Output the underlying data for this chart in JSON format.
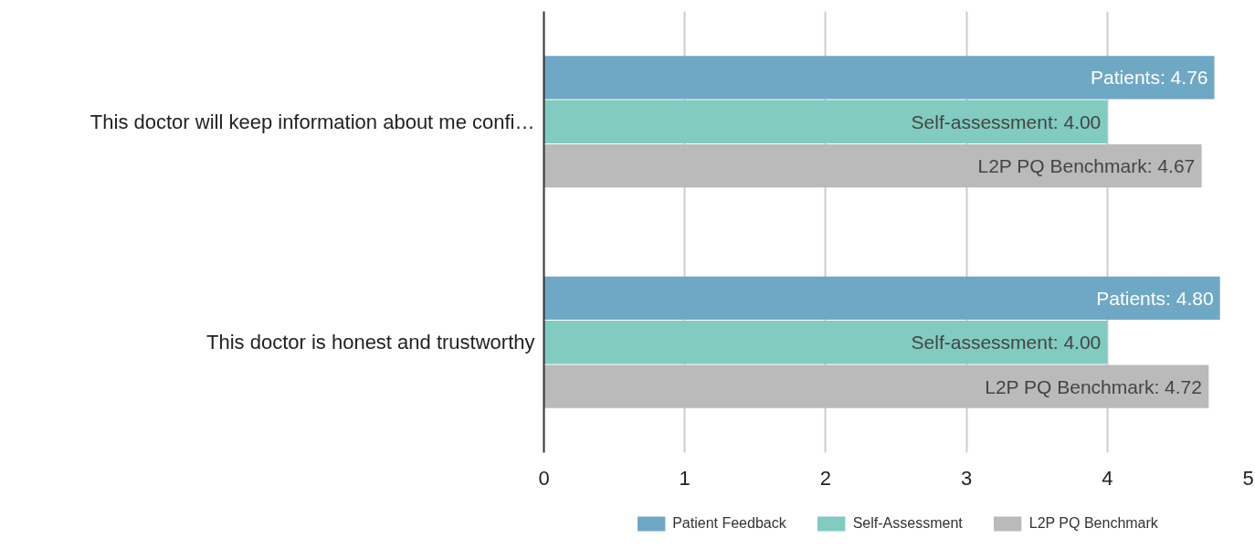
{
  "chart_data": {
    "type": "bar",
    "orientation": "horizontal",
    "categories": [
      "This doctor will keep information about me confi…",
      "This doctor is honest and trustworthy"
    ],
    "series": [
      {
        "name": "Patient Feedback",
        "color": "#6fa8c5",
        "values": [
          4.76,
          4.8
        ],
        "value_labels": [
          "Patients: 4.76",
          "Patients: 4.80"
        ]
      },
      {
        "name": "Self-Assessment",
        "color": "#81cbc0",
        "values": [
          4.0,
          4.0
        ],
        "value_labels": [
          "Self-assessment: 4.00",
          "Self-assessment: 4.00"
        ]
      },
      {
        "name": "L2P PQ Benchmark",
        "color": "#bababa",
        "values": [
          4.67,
          4.72
        ],
        "value_labels": [
          "L2P PQ Benchmark: 4.67",
          "L2P PQ Benchmark: 4.72"
        ]
      }
    ],
    "xlim": [
      0,
      5
    ],
    "xticks": [
      0,
      1,
      2,
      3,
      4,
      5
    ],
    "grid": "x",
    "legend": "bottom"
  }
}
